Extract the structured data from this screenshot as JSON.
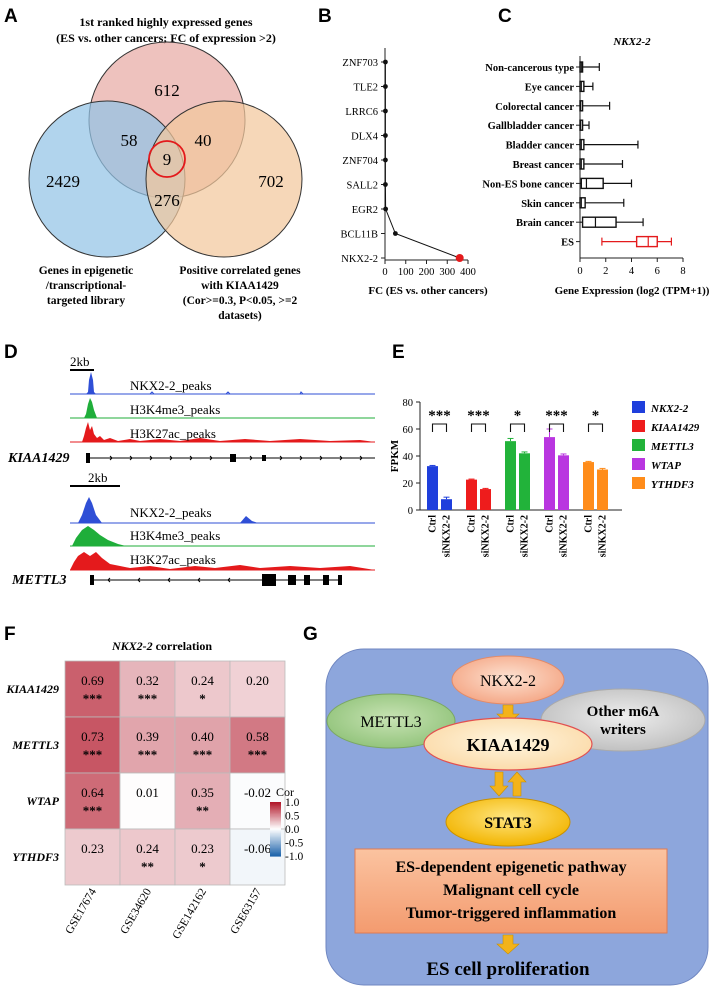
{
  "panels": {
    "a": "A",
    "b": "B",
    "c": "C",
    "d": "D",
    "e": "E",
    "f": "F",
    "g": "G"
  },
  "venn": {
    "title_line1": "1st ranked highly expressed genes",
    "title_line2": "(ES vs. other cancers; FC of expression >2)",
    "counts": {
      "top": "612",
      "top_left": "58",
      "top_right": "40",
      "center": "9",
      "left": "2429",
      "bottom": "276",
      "right": "702"
    },
    "left_label": [
      "Genes in epigenetic",
      "/transcriptional-",
      "targeted library"
    ],
    "right_label": [
      "Positive correlated genes",
      "with KIAA1429",
      "(Cor>=0.3, P<0.05, >=2",
      "datasets)"
    ]
  },
  "tracks": {
    "block1": {
      "scale_label": "2kb",
      "gene": "KIAA1429",
      "labels": [
        "NKX2-2_peaks",
        "H3K4me3_peaks",
        "H3K27ac_peaks"
      ]
    },
    "block2": {
      "scale_label": "2kb",
      "gene": "METTL3",
      "labels": [
        "NKX2-2_peaks",
        "H3K4me3_peaks",
        "H3K27ac_peaks"
      ]
    }
  },
  "chart_data": [
    {
      "type": "line",
      "xlabel": "FC (ES vs. other cancers)",
      "ylabel": "",
      "xlim": [
        0,
        400
      ],
      "xticks": [
        0,
        100,
        200,
        300,
        400
      ],
      "categories": [
        "ZNF703",
        "TLE2",
        "LRRC6",
        "DLX4",
        "ZNF704",
        "SALL2",
        "EGR2",
        "BCL11B",
        "NKX2-2"
      ],
      "values": [
        2,
        2,
        2,
        2,
        2,
        2,
        3,
        50,
        360
      ],
      "highlight": "NKX2-2",
      "highlight_color": "#e41a1c"
    },
    {
      "type": "box",
      "title": "NKX2-2",
      "xlabel": "Gene Expression (log2 (TPM+1))",
      "xlim": [
        0,
        8
      ],
      "xticks": [
        0,
        2,
        4,
        6,
        8
      ],
      "categories": [
        "Non-cancerous type",
        "Eye cancer",
        "Colorectal cancer",
        "Gallbladder cancer",
        "Bladder cancer",
        "Breast cancer",
        "Non-ES bone cancer",
        "Skin cancer",
        "Brain cancer",
        "ES"
      ],
      "stats": [
        {
          "min": 0,
          "q1": 0,
          "median": 0.1,
          "q3": 0.2,
          "max": 1.5
        },
        {
          "min": 0,
          "q1": 0,
          "median": 0.1,
          "q3": 0.3,
          "max": 1.0
        },
        {
          "min": 0,
          "q1": 0,
          "median": 0.05,
          "q3": 0.2,
          "max": 2.3
        },
        {
          "min": 0,
          "q1": 0,
          "median": 0.05,
          "q3": 0.2,
          "max": 0.7
        },
        {
          "min": 0,
          "q1": 0,
          "median": 0.1,
          "q3": 0.3,
          "max": 4.5
        },
        {
          "min": 0,
          "q1": 0,
          "median": 0.1,
          "q3": 0.3,
          "max": 3.3
        },
        {
          "min": 0,
          "q1": 0.1,
          "median": 0.5,
          "q3": 1.8,
          "max": 4.0
        },
        {
          "min": 0,
          "q1": 0,
          "median": 0.1,
          "q3": 0.4,
          "max": 3.4
        },
        {
          "min": 0,
          "q1": 0.2,
          "median": 1.2,
          "q3": 2.8,
          "max": 4.9
        },
        {
          "min": 1.7,
          "q1": 4.4,
          "median": 5.3,
          "q3": 6.0,
          "max": 7.1
        }
      ],
      "highlight": "ES",
      "highlight_color": "#e41a1c"
    },
    {
      "type": "bar",
      "ylabel": "FPKM",
      "ylim": [
        0,
        80
      ],
      "yticks": [
        0,
        20,
        40,
        60,
        80
      ],
      "groups": [
        {
          "gene": "NKX2-2",
          "color": "#1f3fdc",
          "ctrl": 32.5,
          "ctrl_err": 0.5,
          "si": 8.0,
          "si_err": 1.5,
          "sig": "***"
        },
        {
          "gene": "KIAA1429",
          "color": "#ee1c1c",
          "ctrl": 22.5,
          "ctrl_err": 0.4,
          "si": 15.5,
          "si_err": 0.5,
          "sig": "***"
        },
        {
          "gene": "METTL3",
          "color": "#22b33a",
          "ctrl": 51.0,
          "ctrl_err": 2.0,
          "si": 42.0,
          "si_err": 1.0,
          "sig": "*"
        },
        {
          "gene": "WTAP",
          "color": "#b936e0",
          "ctrl": 54.0,
          "ctrl_err": 6.0,
          "si": 40.5,
          "si_err": 1.0,
          "sig": "***"
        },
        {
          "gene": "YTHDF3",
          "color": "#ff8c1a",
          "ctrl": 35.5,
          "ctrl_err": 0.5,
          "si": 30.0,
          "si_err": 0.8,
          "sig": "*"
        }
      ],
      "categories": [
        "Ctrl",
        "siNKX2-2"
      ]
    },
    {
      "type": "heatmap",
      "title_gene": "NKX2-2",
      "title_rest": " correlation",
      "rows": [
        "KIAA1429",
        "METTL3",
        "WTAP",
        "YTHDF3"
      ],
      "columns": [
        "GSE17674",
        "GSE34620",
        "GSE142162",
        "GSE63157"
      ],
      "values": [
        [
          0.69,
          0.32,
          0.24,
          0.2
        ],
        [
          0.73,
          0.39,
          0.4,
          0.58
        ],
        [
          0.64,
          0.01,
          0.35,
          -0.02
        ],
        [
          0.23,
          0.24,
          0.23,
          -0.06
        ]
      ],
      "labels": [
        [
          "0.69",
          "0.32",
          "0.24",
          "0.20"
        ],
        [
          "0.73",
          "0.39",
          "0.40",
          "0.58"
        ],
        [
          "0.64",
          "0.01",
          "0.35",
          "-0.02"
        ],
        [
          "0.23",
          "0.24",
          "0.23",
          "-0.06"
        ]
      ],
      "significance": [
        [
          "***",
          "***",
          "*",
          ""
        ],
        [
          "***",
          "***",
          "***",
          "***"
        ],
        [
          "***",
          "",
          "**",
          ""
        ],
        [
          "",
          "**",
          "*",
          ""
        ]
      ],
      "colorbar": {
        "title": "Cor",
        "range": [
          -1,
          1
        ],
        "ticks": [
          "1.0",
          "0.5",
          "0.0",
          "-0.5",
          "-1.0"
        ],
        "low_color": "#2166ac",
        "mid_color": "#ffffff",
        "high_color": "#b2182b"
      }
    }
  ],
  "schematic": {
    "nkx22": "NKX2-2",
    "mettl3": "METTL3",
    "other_line1": "Other m6A",
    "other_line2": "writers",
    "kiaa1429": "KIAA1429",
    "stat3": "STAT3",
    "box": [
      "ES-dependent epigenetic pathway",
      "Malignant cell cycle",
      "Tumor-triggered inflammation"
    ],
    "outcome": "ES cell proliferation"
  }
}
